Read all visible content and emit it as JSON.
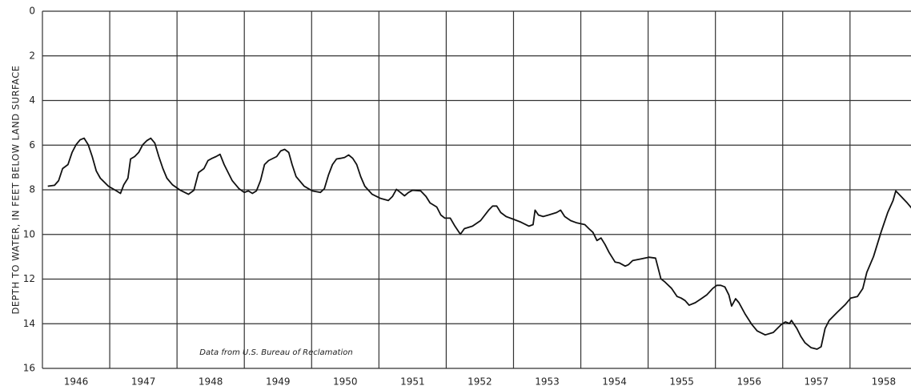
{
  "chart_data": {
    "type": "line",
    "y_label": "DEPTH TO WATER, IN FEET BELOW LAND SURFACE",
    "annotation": "Data from U.S. Bureau of Reclamation",
    "color": "#111111",
    "grid": true,
    "xlim": [
      1946,
      1958.93
    ],
    "xticks": [
      1946,
      1947,
      1948,
      1949,
      1950,
      1951,
      1952,
      1953,
      1954,
      1955,
      1956,
      1957,
      1958
    ],
    "ylim": [
      16,
      0
    ],
    "yticks": [
      0,
      2,
      4,
      6,
      8,
      10,
      12,
      14,
      16
    ],
    "x": [
      1946.08,
      1946.18,
      1946.24,
      1946.3,
      1946.38,
      1946.44,
      1946.5,
      1946.56,
      1946.62,
      1946.68,
      1946.74,
      1946.8,
      1946.86,
      1946.98,
      1947.1,
      1947.16,
      1947.21,
      1947.27,
      1947.31,
      1947.37,
      1947.43,
      1947.49,
      1947.55,
      1947.61,
      1947.67,
      1947.73,
      1947.79,
      1947.85,
      1947.93,
      1948.05,
      1948.17,
      1948.25,
      1948.32,
      1948.4,
      1948.46,
      1948.52,
      1948.58,
      1948.64,
      1948.7,
      1948.76,
      1948.82,
      1948.92,
      1949.0,
      1949.06,
      1949.12,
      1949.18,
      1949.24,
      1949.3,
      1949.36,
      1949.48,
      1949.54,
      1949.6,
      1949.66,
      1949.71,
      1949.77,
      1949.89,
      1950.01,
      1950.13,
      1950.19,
      1950.25,
      1950.31,
      1950.37,
      1950.43,
      1950.49,
      1950.55,
      1950.61,
      1950.67,
      1950.73,
      1950.79,
      1950.9,
      1951.02,
      1951.14,
      1951.2,
      1951.26,
      1951.32,
      1951.38,
      1951.44,
      1951.5,
      1951.62,
      1951.7,
      1951.76,
      1951.86,
      1951.92,
      1951.98,
      1952.06,
      1952.13,
      1952.21,
      1952.27,
      1952.39,
      1952.51,
      1952.63,
      1952.69,
      1952.75,
      1952.81,
      1952.89,
      1952.99,
      1953.11,
      1953.23,
      1953.29,
      1953.32,
      1953.37,
      1953.44,
      1953.52,
      1953.64,
      1953.7,
      1953.76,
      1953.85,
      1953.94,
      1954.06,
      1954.12,
      1954.18,
      1954.24,
      1954.3,
      1954.36,
      1954.42,
      1954.51,
      1954.57,
      1954.66,
      1954.71,
      1954.77,
      1954.89,
      1955.01,
      1955.11,
      1955.19,
      1955.25,
      1955.35,
      1955.43,
      1955.49,
      1955.55,
      1955.61,
      1955.7,
      1955.79,
      1955.87,
      1955.96,
      1956.02,
      1956.08,
      1956.14,
      1956.2,
      1956.24,
      1956.3,
      1956.35,
      1956.44,
      1956.54,
      1956.62,
      1956.74,
      1956.86,
      1956.92,
      1956.98,
      1957.04,
      1957.1,
      1957.13,
      1957.21,
      1957.27,
      1957.33,
      1957.42,
      1957.51,
      1957.57,
      1957.63,
      1957.69,
      1957.81,
      1957.93,
      1958.01,
      1958.11,
      1958.19,
      1958.25,
      1958.35,
      1958.46,
      1958.56,
      1958.64,
      1958.68,
      1958.76,
      1958.85,
      1958.92
    ],
    "values": [
      7.84,
      7.8,
      7.59,
      7.05,
      6.87,
      6.33,
      5.98,
      5.76,
      5.69,
      5.98,
      6.51,
      7.16,
      7.48,
      7.84,
      8.05,
      8.16,
      7.77,
      7.48,
      6.62,
      6.51,
      6.33,
      5.98,
      5.8,
      5.69,
      5.91,
      6.51,
      7.05,
      7.48,
      7.77,
      8.02,
      8.2,
      8.02,
      7.23,
      7.05,
      6.69,
      6.59,
      6.51,
      6.41,
      6.87,
      7.23,
      7.59,
      7.95,
      8.12,
      8.05,
      8.16,
      8.05,
      7.59,
      6.87,
      6.69,
      6.51,
      6.26,
      6.19,
      6.33,
      6.87,
      7.41,
      7.84,
      8.05,
      8.12,
      7.95,
      7.34,
      6.87,
      6.62,
      6.59,
      6.55,
      6.44,
      6.59,
      6.87,
      7.41,
      7.84,
      8.2,
      8.38,
      8.48,
      8.3,
      7.98,
      8.12,
      8.27,
      8.12,
      8.02,
      8.05,
      8.3,
      8.59,
      8.77,
      9.13,
      9.27,
      9.27,
      9.63,
      9.99,
      9.74,
      9.63,
      9.38,
      8.91,
      8.73,
      8.73,
      9.02,
      9.2,
      9.31,
      9.45,
      9.63,
      9.56,
      8.91,
      9.13,
      9.2,
      9.13,
      9.02,
      8.91,
      9.2,
      9.38,
      9.48,
      9.56,
      9.74,
      9.91,
      10.27,
      10.16,
      10.45,
      10.81,
      11.24,
      11.27,
      11.42,
      11.35,
      11.17,
      11.1,
      11.02,
      11.06,
      11.99,
      12.13,
      12.42,
      12.78,
      12.85,
      12.96,
      13.17,
      13.06,
      12.88,
      12.71,
      12.42,
      12.28,
      12.28,
      12.35,
      12.71,
      13.21,
      12.88,
      13.06,
      13.56,
      14.03,
      14.32,
      14.5,
      14.39,
      14.21,
      14.03,
      13.92,
      13.99,
      13.85,
      14.21,
      14.57,
      14.85,
      15.07,
      15.14,
      15.03,
      14.21,
      13.85,
      13.49,
      13.14,
      12.85,
      12.78,
      12.42,
      11.7,
      10.99,
      9.91,
      9.02,
      8.48,
      8.05,
      8.3,
      8.59,
      8.84
    ]
  }
}
